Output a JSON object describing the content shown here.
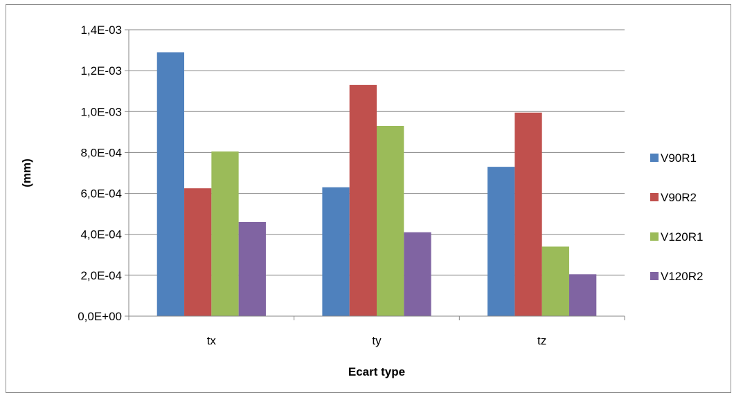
{
  "chart_data": {
    "type": "bar",
    "title": "",
    "xlabel": "Ecart type",
    "ylabel": "(mm)",
    "categories": [
      "tx",
      "ty",
      "tz"
    ],
    "series": [
      {
        "name": "V90R1",
        "values": [
          0.00129,
          0.00063,
          0.00073
        ],
        "color": "#4F81BD"
      },
      {
        "name": "V90R2",
        "values": [
          0.000625,
          0.00113,
          0.000995
        ],
        "color": "#C0504D"
      },
      {
        "name": "V120R1",
        "values": [
          0.000805,
          0.00093,
          0.00034
        ],
        "color": "#9BBB59"
      },
      {
        "name": "V120R2",
        "values": [
          0.00046,
          0.00041,
          0.000205
        ],
        "color": "#8064A2"
      }
    ],
    "ylim": [
      0,
      0.0014
    ],
    "yticks": [
      0,
      0.0002,
      0.0004,
      0.0006,
      0.0008,
      0.001,
      0.0012,
      0.0014
    ],
    "ytick_labels": [
      "0,0E+00",
      "2,0E-04",
      "4,0E-04",
      "6,0E-04",
      "8,0E-04",
      "1,0E-03",
      "1,2E-03",
      "1,4E-03"
    ],
    "grid": true,
    "legend_position": "right"
  }
}
